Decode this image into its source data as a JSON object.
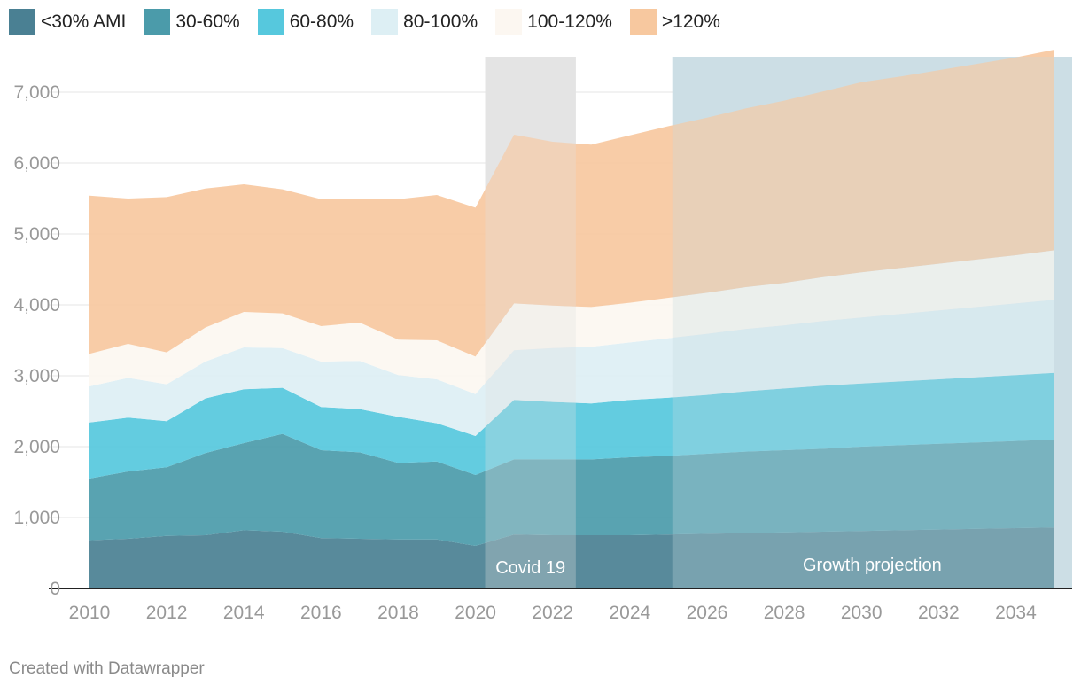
{
  "chart_data": {
    "type": "area",
    "stacked": true,
    "x": [
      2010,
      2011,
      2012,
      2013,
      2014,
      2015,
      2016,
      2017,
      2018,
      2019,
      2020,
      2021,
      2022,
      2023,
      2024,
      2025,
      2026,
      2027,
      2028,
      2029,
      2030,
      2031,
      2032,
      2033,
      2034,
      2035
    ],
    "series": [
      {
        "name": "<30% AMI",
        "color": "#4a8093",
        "values": [
          680,
          700,
          740,
          750,
          820,
          800,
          710,
          700,
          690,
          690,
          600,
          760,
          750,
          750,
          750,
          760,
          770,
          780,
          790,
          800,
          810,
          820,
          830,
          840,
          850,
          860
        ]
      },
      {
        "name": "30-60%",
        "color": "#4b9baa",
        "values": [
          870,
          950,
          970,
          1160,
          1230,
          1380,
          1240,
          1220,
          1080,
          1100,
          1000,
          1060,
          1070,
          1070,
          1100,
          1110,
          1130,
          1150,
          1160,
          1170,
          1190,
          1200,
          1210,
          1220,
          1230,
          1240
        ]
      },
      {
        "name": "60-80%",
        "color": "#56c8dd",
        "values": [
          790,
          760,
          650,
          770,
          760,
          650,
          610,
          610,
          650,
          540,
          550,
          840,
          810,
          790,
          810,
          820,
          830,
          850,
          870,
          890,
          890,
          900,
          910,
          920,
          930,
          940
        ]
      },
      {
        "name": "80-100%",
        "color": "#ddeff4",
        "values": [
          510,
          560,
          520,
          520,
          590,
          560,
          640,
          680,
          590,
          620,
          590,
          700,
          760,
          800,
          810,
          840,
          860,
          880,
          890,
          910,
          930,
          950,
          970,
          990,
          1010,
          1030
        ]
      },
      {
        "name": "100-120%",
        "color": "#fcf7f1",
        "values": [
          460,
          480,
          450,
          480,
          500,
          490,
          500,
          540,
          500,
          550,
          530,
          660,
          600,
          560,
          560,
          570,
          580,
          590,
          600,
          620,
          640,
          650,
          660,
          670,
          680,
          700
        ]
      },
      {
        "name": ">120%",
        "color": "#f7c89f",
        "values": [
          2230,
          2050,
          2190,
          1960,
          1800,
          1750,
          1790,
          1740,
          1980,
          2050,
          2100,
          2380,
          2310,
          2290,
          2360,
          2420,
          2470,
          2520,
          2570,
          2620,
          2680,
          2700,
          2730,
          2760,
          2790,
          2830
        ]
      }
    ],
    "ylim": [
      0,
      7500
    ],
    "yticks": [
      "0",
      "1,000",
      "2,000",
      "3,000",
      "4,000",
      "5,000",
      "6,000",
      "7,000"
    ],
    "xticks": [
      "2010",
      "2012",
      "2014",
      "2016",
      "2018",
      "2020",
      "2022",
      "2024",
      "2026",
      "2028",
      "2030",
      "2032",
      "2034"
    ],
    "grid": true,
    "legend_position": "top-left",
    "annotations": [
      {
        "label": "Covid 19",
        "x_start": 2020.25,
        "x_end": 2022.6,
        "color": "#e4e4e4"
      },
      {
        "label": "Growth projection",
        "x_start": 2025.1,
        "x_end": 2035.5,
        "color": "#ccdfe6"
      }
    ]
  },
  "footer": "Created with Datawrapper"
}
